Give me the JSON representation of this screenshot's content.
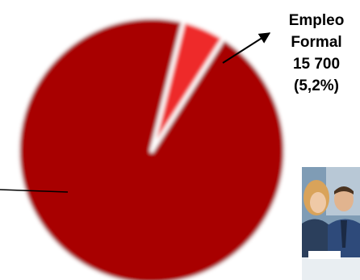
{
  "chart_data": {
    "type": "pie",
    "slices": [
      {
        "name": "",
        "value": 94.8,
        "color": "#a80000",
        "label": []
      },
      {
        "name": "Empleo Formal",
        "value": 5.2,
        "color": "#ee2a2a",
        "label": [
          "Empleo",
          "Formal",
          "15 700",
          "(5,2%)"
        ]
      }
    ]
  }
}
